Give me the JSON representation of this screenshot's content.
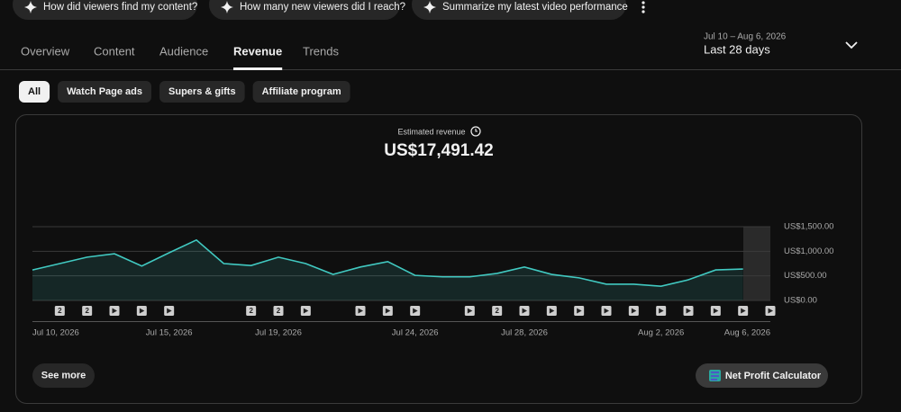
{
  "suggestion_chips": [
    "How did viewers find my content?",
    "How many new viewers did I reach?",
    "Summarize my latest video performance"
  ],
  "tabs": [
    "Overview",
    "Content",
    "Audience",
    "Revenue",
    "Trends"
  ],
  "active_tab_index": 3,
  "date_range": {
    "dates": "Jul 10 – Aug 6, 2026",
    "label": "Last 28 days"
  },
  "filters": [
    "All",
    "Watch Page ads",
    "Supers & gifts",
    "Affiliate program"
  ],
  "active_filter_index": 0,
  "chart_data": {
    "type": "line",
    "title": "Estimated revenue",
    "headline": "US$17,491.42",
    "categories": [
      "Jul 10, 2026",
      null,
      null,
      null,
      null,
      "Jul 15, 2026",
      null,
      null,
      null,
      "Jul 19, 2026",
      null,
      null,
      null,
      null,
      "Jul 24, 2026",
      null,
      null,
      null,
      "Jul 28, 2026",
      null,
      null,
      null,
      null,
      "Aug 2, 2026",
      null,
      null,
      null,
      "Aug 6, 2026"
    ],
    "series": [
      {
        "name": "Estimated revenue",
        "color": "#41c9c1",
        "values": [
          620,
          750,
          880,
          950,
          700,
          970,
          1230,
          750,
          710,
          880,
          750,
          530,
          680,
          790,
          510,
          480,
          480,
          550,
          680,
          530,
          460,
          330,
          330,
          290,
          420,
          620,
          640,
          null
        ]
      }
    ],
    "uploads": [
      0,
      2,
      2,
      1,
      1,
      1,
      0,
      0,
      2,
      2,
      1,
      0,
      1,
      1,
      1,
      0,
      1,
      2,
      1,
      1,
      1,
      1,
      1,
      1,
      1,
      1,
      1,
      1
    ],
    "ylim": [
      0,
      1500
    ],
    "yticks": [
      {
        "value": 0,
        "label": "US$0.00"
      },
      {
        "value": 500,
        "label": "US$500.00"
      },
      {
        "value": 1000,
        "label": "US$1,000.00"
      },
      {
        "value": 1500,
        "label": "US$1,500.00"
      }
    ],
    "grid": true
  },
  "buttons": {
    "see_more": "See more",
    "calculator": "Net Profit Calculator"
  }
}
